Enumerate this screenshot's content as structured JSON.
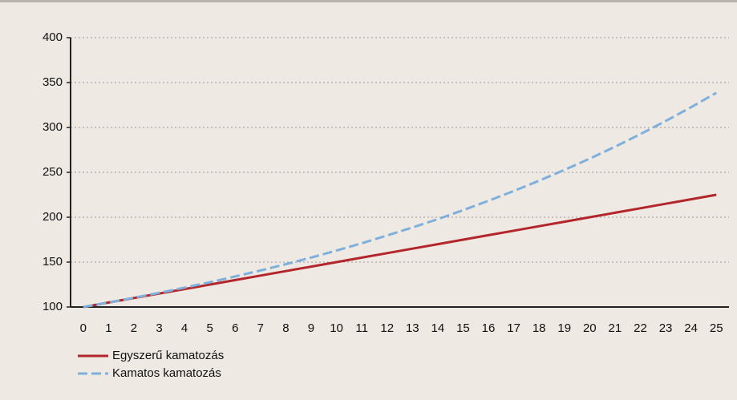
{
  "chart_data": {
    "type": "line",
    "categories": [
      "0",
      "1",
      "2",
      "3",
      "4",
      "5",
      "6",
      "7",
      "8",
      "9",
      "10",
      "11",
      "12",
      "13",
      "14",
      "15",
      "16",
      "17",
      "18",
      "19",
      "20",
      "21",
      "22",
      "23",
      "24",
      "25"
    ],
    "series": [
      {
        "name": "Egyszerű kamatozás",
        "color": "#b3262b",
        "dashed": false,
        "values": [
          100,
          105,
          110,
          115,
          120,
          125,
          130,
          135,
          140,
          145,
          150,
          155,
          160,
          165,
          170,
          175,
          180,
          185,
          190,
          195,
          200,
          205,
          210,
          215,
          220,
          225
        ]
      },
      {
        "name": "Kamatos kamatozás",
        "color": "#7eb0db",
        "dashed": true,
        "values": [
          100,
          105,
          110.3,
          115.8,
          121.6,
          127.6,
          134.0,
          140.7,
          147.7,
          155.1,
          162.9,
          171.0,
          179.6,
          188.6,
          197.9,
          207.9,
          218.3,
          229.2,
          240.7,
          252.7,
          265.3,
          278.6,
          292.5,
          307.2,
          322.5,
          338.6
        ]
      }
    ],
    "ylim": [
      100,
      400
    ],
    "yticks": [
      100,
      150,
      200,
      250,
      300,
      350,
      400
    ],
    "grid": true,
    "legend": "bottom-left"
  }
}
